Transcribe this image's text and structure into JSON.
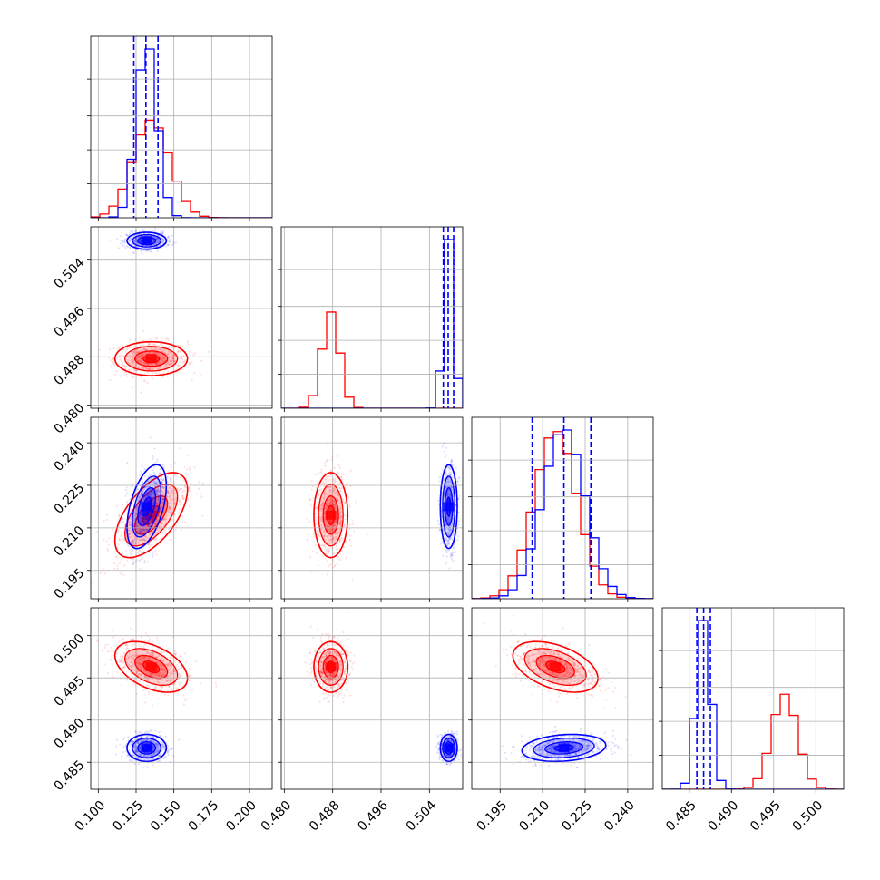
{
  "chart_data": {
    "type": "corner",
    "grid": true,
    "parameters": [
      {
        "range": [
          0.095,
          0.215
        ],
        "ticks": [
          0.1,
          0.125,
          0.15,
          0.175,
          0.2
        ],
        "tick_labels": [
          "0.100",
          "0.125",
          "0.150",
          "0.175",
          "0.200"
        ]
      },
      {
        "range": [
          0.4795,
          0.5095
        ],
        "ticks": [
          0.48,
          0.488,
          0.496,
          0.504
        ],
        "tick_labels": [
          "0.480",
          "0.488",
          "0.496",
          "0.504"
        ]
      },
      {
        "range": [
          0.185,
          0.249
        ],
        "ticks": [
          0.195,
          0.21,
          0.225,
          0.24
        ],
        "tick_labels": [
          "0.195",
          "0.210",
          "0.225",
          "0.240"
        ]
      },
      {
        "range": [
          0.4818,
          0.5033
        ],
        "ticks": [
          0.485,
          0.49,
          0.495,
          0.5
        ],
        "tick_labels": [
          "0.485",
          "0.490",
          "0.495",
          "0.500"
        ]
      }
    ],
    "series": [
      {
        "color": "#0000ff",
        "mean": [
          0.132,
          0.5072,
          0.2175,
          0.4867
        ],
        "sd": [
          0.0065,
          0.0007,
          0.0074,
          0.0008
        ],
        "corr": {
          "0-2": 0.5,
          "2-3": 0.2
        }
      },
      {
        "color": "#ff0000",
        "mean": [
          0.135,
          0.4877,
          0.2145,
          0.4963
        ],
        "sd": [
          0.012,
          0.0014,
          0.0075,
          0.0015
        ],
        "corr": {
          "0-2": 0.6,
          "0-3": -0.45,
          "2-3": -0.45
        }
      }
    ],
    "quantile_lines": {
      "color": "#0000ff",
      "style": "dashed",
      "values": [
        [
          0.1235,
          0.1315,
          0.1395
        ],
        [
          0.5063,
          0.5071,
          0.508
        ],
        [
          0.2063,
          0.2175,
          0.227
        ],
        [
          0.4859,
          0.4867,
          0.4875
        ]
      ]
    }
  }
}
